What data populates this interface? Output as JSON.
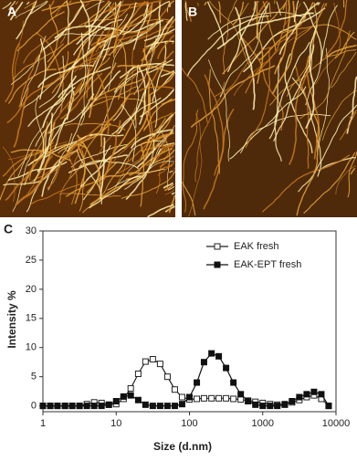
{
  "panels": [
    "A",
    "B",
    "C"
  ],
  "chart_data": {
    "type": "line",
    "xlabel": "Size (d.nm)",
    "ylabel": "Intensity %",
    "x": [
      1,
      1.26,
      1.58,
      2,
      2.51,
      3.16,
      3.98,
      5.01,
      6.31,
      7.94,
      10,
      12.6,
      15.8,
      20,
      25.1,
      31.6,
      39.8,
      50.1,
      63.1,
      79.4,
      100,
      126,
      158,
      200,
      251,
      316,
      398,
      501,
      631,
      794,
      1000,
      1260,
      1580,
      2000,
      2510,
      3160,
      3980,
      5010,
      6310,
      7940
    ],
    "series": [
      {
        "name": "EAK fresh",
        "color": "#222222",
        "marker": "open-square",
        "values": [
          0,
          0,
          0,
          0,
          0,
          0,
          0.3,
          0.6,
          0.5,
          0.2,
          0.3,
          1.2,
          3,
          5.5,
          7.6,
          8,
          7.2,
          5,
          2.8,
          1.5,
          1.1,
          1.2,
          1.3,
          1.3,
          1.3,
          1.3,
          1.2,
          1.1,
          0.9,
          0.7,
          0.5,
          0.3,
          0.2,
          0.3,
          0.6,
          1,
          1.5,
          1.8,
          1.2,
          0
        ]
      },
      {
        "name": "EAK-EPT fresh",
        "color": "#111111",
        "marker": "filled-square",
        "values": [
          0,
          0,
          0,
          0,
          0,
          0,
          0,
          0,
          0,
          0.2,
          0.8,
          1.6,
          1.8,
          1,
          0.2,
          0,
          0,
          0,
          0,
          0.3,
          1.5,
          4,
          7.5,
          9,
          8.5,
          6.5,
          4,
          2,
          0.8,
          0.2,
          0,
          0,
          0,
          0.2,
          0.8,
          1.5,
          2,
          2.4,
          2,
          0
        ]
      }
    ],
    "xscale": "log",
    "xlim": [
      1,
      10000
    ],
    "xticks": [
      1,
      10,
      100,
      1000,
      10000
    ],
    "ylim": [
      -1,
      30
    ],
    "yticks": [
      0,
      5,
      10,
      15,
      20,
      25,
      30
    ],
    "legend": "upper right"
  }
}
